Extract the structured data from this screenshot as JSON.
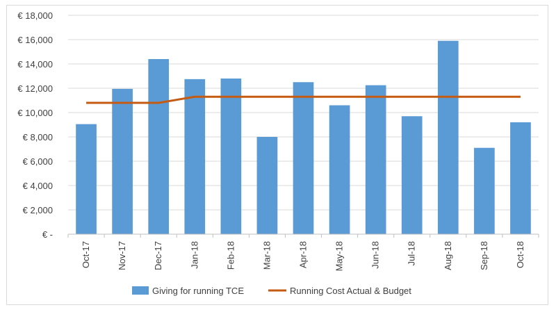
{
  "chart_data": {
    "type": "bar",
    "categories": [
      "Oct-17",
      "Nov-17",
      "Dec-17",
      "Jan-18",
      "Feb-18",
      "Mar-18",
      "Apr-18",
      "May-18",
      "Jun-18",
      "Jul-18",
      "Aug-18",
      "Sep-18",
      "Oct-18"
    ],
    "series": [
      {
        "name": "Giving for running TCE",
        "type": "bar",
        "color": "#5b9bd5",
        "values": [
          9050,
          11950,
          14400,
          12750,
          12800,
          8000,
          12500,
          10600,
          12250,
          9700,
          15900,
          7100,
          9200
        ]
      },
      {
        "name": "Running Cost Actual & Budget",
        "type": "line",
        "color": "#c55a11",
        "values": [
          10800,
          10800,
          10800,
          11300,
          11300,
          11300,
          11300,
          11300,
          11300,
          11300,
          11300,
          11300,
          11300
        ]
      }
    ],
    "y_ticks": [
      {
        "value": 0,
        "label": "€ -"
      },
      {
        "value": 2000,
        "label": "€ 2,000"
      },
      {
        "value": 4000,
        "label": "€ 4,000"
      },
      {
        "value": 6000,
        "label": "€ 6,000"
      },
      {
        "value": 8000,
        "label": "€ 8,000"
      },
      {
        "value": 10000,
        "label": "€ 10,000"
      },
      {
        "value": 12000,
        "label": "€ 12,000"
      },
      {
        "value": 14000,
        "label": "€ 14,000"
      },
      {
        "value": 16000,
        "label": "€ 16,000"
      },
      {
        "value": 18000,
        "label": "€ 18,000"
      }
    ],
    "ylim": [
      0,
      18000
    ],
    "grid": true,
    "gridline_color": "#d9d9d9",
    "legend_position": "bottom",
    "title": "",
    "xlabel": "",
    "ylabel": ""
  }
}
